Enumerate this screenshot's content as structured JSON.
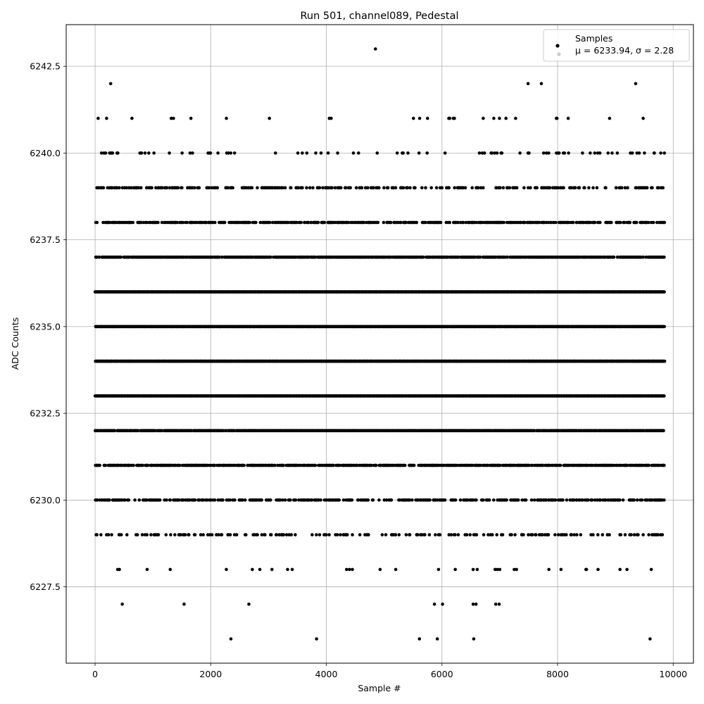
{
  "chart_data": {
    "type": "scatter",
    "title": "Run 501, channel089, Pedestal",
    "xlabel": "Sample #",
    "ylabel": "ADC Counts",
    "xlim": [
      -500,
      10350
    ],
    "ylim": [
      6225.3,
      6243.7
    ],
    "xticks": [
      0,
      2000,
      4000,
      6000,
      8000,
      10000
    ],
    "xtick_labels": [
      "0",
      "2000",
      "4000",
      "6000",
      "8000",
      "10000"
    ],
    "yticks": [
      6227.5,
      6230.0,
      6232.5,
      6235.0,
      6237.5,
      6240.0,
      6242.5
    ],
    "ytick_labels": [
      "6227.5",
      "6230.0",
      "6232.5",
      "6235.0",
      "6237.5",
      "6240.0",
      "6242.5"
    ],
    "grid": true,
    "legend": {
      "placement": "top-right",
      "entries": [
        {
          "label": "Samples",
          "color": "#000000"
        },
        {
          "label": "μ = 6233.94, σ = 2.28",
          "color": "#cccccc"
        }
      ]
    },
    "series": [
      {
        "name": "Samples",
        "color": "#000000",
        "n_samples": 9850,
        "levels": [
          {
            "y": 6226,
            "x": [
              2350,
              3830,
              5610,
              5920,
              6550,
              9600
            ]
          },
          {
            "y": 6227,
            "x": [
              470,
              1540,
              2660,
              5870,
              6010,
              6540,
              6590,
              6930,
              6990
            ]
          },
          {
            "y": 6228,
            "x": [
              390,
              420,
              900,
              1300,
              2270,
              2720,
              2850,
              3060,
              3330,
              3410,
              4350,
              4400,
              4450,
              4930,
              5200,
              5940,
              6230,
              6540,
              6610,
              6920,
              6960,
              7000,
              7250,
              7290,
              7850,
              8060,
              8490,
              8500,
              8700,
              9080,
              9200,
              9620
            ]
          },
          {
            "y": 6242,
            "x": [
              270,
              7490,
              7720,
              9350
            ]
          },
          {
            "y": 6243,
            "x": [
              4850
            ]
          }
        ],
        "dense_levels": [
          {
            "y": 6229,
            "density": 0.22
          },
          {
            "y": 6230,
            "density": 0.45
          },
          {
            "y": 6231,
            "density": 0.7
          },
          {
            "y": 6232,
            "density": 0.85
          },
          {
            "y": 6233,
            "density": 1.0
          },
          {
            "y": 6234,
            "density": 1.0
          },
          {
            "y": 6235,
            "density": 1.0
          },
          {
            "y": 6236,
            "density": 1.0
          },
          {
            "y": 6237,
            "density": 0.8
          },
          {
            "y": 6238,
            "density": 0.55
          },
          {
            "y": 6239,
            "density": 0.3
          },
          {
            "y": 6240,
            "density": 0.12
          },
          {
            "y": 6241,
            "density": 0.03
          }
        ]
      }
    ]
  }
}
